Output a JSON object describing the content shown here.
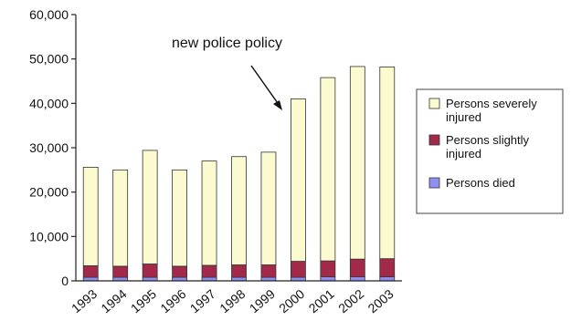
{
  "chart_data": {
    "type": "bar",
    "stacked": true,
    "categories": [
      "1993",
      "1994",
      "1995",
      "1996",
      "1997",
      "1998",
      "1999",
      "2000",
      "2001",
      "2002",
      "2003"
    ],
    "series": [
      {
        "name": "Persons died",
        "color": "#8f8ff0",
        "values": [
          800,
          800,
          800,
          800,
          800,
          800,
          800,
          800,
          900,
          900,
          900
        ]
      },
      {
        "name": "Persons slightly injured",
        "color": "#a3294a",
        "values": [
          2600,
          2500,
          3000,
          2500,
          2700,
          2800,
          2800,
          3600,
          3600,
          4000,
          4100
        ]
      },
      {
        "name": "Persons severely injured",
        "color": "#fbfbcf",
        "values": [
          22200,
          21700,
          25600,
          21700,
          23500,
          24400,
          25400,
          36600,
          41300,
          43400,
          43200
        ]
      }
    ],
    "legend_order": [
      "Persons severely injured",
      "Persons slightly injured",
      "Persons died"
    ],
    "legend_labels": [
      [
        "Persons severely",
        "injured"
      ],
      [
        "Persons slightly",
        "injured"
      ],
      [
        "Persons died"
      ]
    ],
    "ylim": [
      0,
      60000
    ],
    "yticks": [
      "0",
      "10,000",
      "20,000",
      "30,000",
      "40,000",
      "50,000",
      "60,000"
    ],
    "ytick_values": [
      0,
      10000,
      20000,
      30000,
      40000,
      50000,
      60000
    ],
    "annotation": {
      "text": "new police policy",
      "target_category": "2000"
    },
    "legend_position": "right",
    "grid": false
  }
}
